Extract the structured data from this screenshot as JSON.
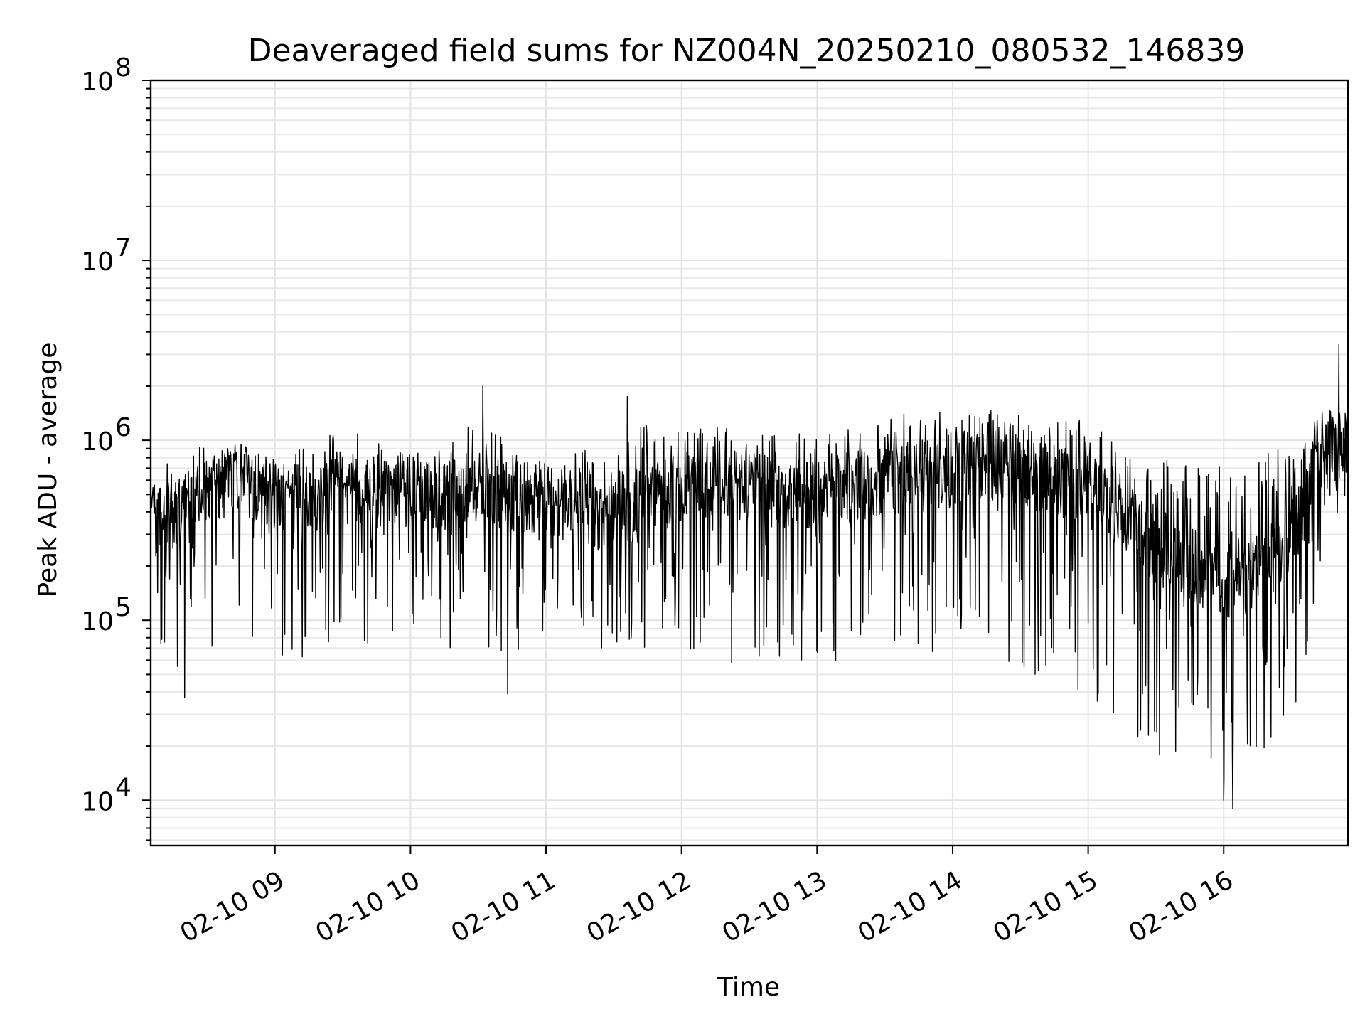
{
  "chart_data": {
    "type": "line",
    "title": "Deaveraged field sums for NZ004N_20250210_080532_146839",
    "xlabel": "Time",
    "ylabel": "Peak ADU - average",
    "y_scale": "log",
    "ylim": [
      5600,
      100000000
    ],
    "xlim": [
      "2025-02-10 08:05",
      "2025-02-10 16:55"
    ],
    "x_ticks": [
      {
        "value": "2025-02-10 09:00",
        "label": "02-10 09"
      },
      {
        "value": "2025-02-10 10:00",
        "label": "02-10 10"
      },
      {
        "value": "2025-02-10 11:00",
        "label": "02-10 11"
      },
      {
        "value": "2025-02-10 12:00",
        "label": "02-10 12"
      },
      {
        "value": "2025-02-10 13:00",
        "label": "02-10 13"
      },
      {
        "value": "2025-02-10 14:00",
        "label": "02-10 14"
      },
      {
        "value": "2025-02-10 15:00",
        "label": "02-10 15"
      },
      {
        "value": "2025-02-10 16:00",
        "label": "02-10 16"
      }
    ],
    "y_ticks": [
      {
        "value": 10000,
        "base": "10",
        "exp": "4"
      },
      {
        "value": 100000,
        "base": "10",
        "exp": "5"
      },
      {
        "value": 1000000,
        "base": "10",
        "exp": "6"
      },
      {
        "value": 10000000,
        "base": "10",
        "exp": "7"
      },
      {
        "value": 100000000,
        "base": "10",
        "exp": "8"
      }
    ],
    "grid": true,
    "line_color": "#000000",
    "envelope": {
      "x": [
        "2025-02-10 08:05",
        "2025-02-10 08:15",
        "2025-02-10 08:30",
        "2025-02-10 08:45",
        "2025-02-10 09:00",
        "2025-02-10 09:15",
        "2025-02-10 09:30",
        "2025-02-10 09:45",
        "2025-02-10 10:00",
        "2025-02-10 10:15",
        "2025-02-10 10:30",
        "2025-02-10 10:45",
        "2025-02-10 11:00",
        "2025-02-10 11:15",
        "2025-02-10 11:30",
        "2025-02-10 11:45",
        "2025-02-10 12:00",
        "2025-02-10 12:15",
        "2025-02-10 12:30",
        "2025-02-10 12:45",
        "2025-02-10 13:00",
        "2025-02-10 13:15",
        "2025-02-10 13:30",
        "2025-02-10 13:45",
        "2025-02-10 14:00",
        "2025-02-10 14:15",
        "2025-02-10 14:30",
        "2025-02-10 14:45",
        "2025-02-10 15:00",
        "2025-02-10 15:15",
        "2025-02-10 15:30",
        "2025-02-10 15:45",
        "2025-02-10 16:00",
        "2025-02-10 16:15",
        "2025-02-10 16:30",
        "2025-02-10 16:45",
        "2025-02-10 16:55"
      ],
      "typical": [
        350000,
        380000,
        550000,
        600000,
        500000,
        450000,
        550000,
        500000,
        500000,
        480000,
        550000,
        480000,
        420000,
        400000,
        380000,
        450000,
        550000,
        600000,
        550000,
        500000,
        500000,
        550000,
        600000,
        600000,
        650000,
        700000,
        650000,
        600000,
        500000,
        400000,
        250000,
        200000,
        150000,
        180000,
        300000,
        800000,
        1000000
      ],
      "low": [
        100000,
        50000,
        60000,
        70000,
        60000,
        60000,
        70000,
        70000,
        70000,
        65000,
        70000,
        60000,
        60000,
        55000,
        60000,
        65000,
        60000,
        55000,
        55000,
        60000,
        60000,
        55000,
        55000,
        50000,
        50000,
        50000,
        45000,
        40000,
        35000,
        25000,
        18000,
        15000,
        12000,
        15000,
        20000,
        300000,
        500000
      ],
      "high": [
        600000,
        800000,
        1000000,
        1000000,
        900000,
        900000,
        1200000,
        1000000,
        900000,
        950000,
        1300000,
        950000,
        800000,
        900000,
        850000,
        1300000,
        1100000,
        1200000,
        1100000,
        1100000,
        1100000,
        1200000,
        1300000,
        1500000,
        1500000,
        1500000,
        1400000,
        1300000,
        1300000,
        900000,
        800000,
        800000,
        800000,
        850000,
        1000000,
        1500000,
        1400000
      ]
    },
    "peaks": [
      {
        "x": "2025-02-10 10:32",
        "y": 2000000
      },
      {
        "x": "2025-02-10 11:36",
        "y": 1750000
      },
      {
        "x": "2025-02-10 16:51",
        "y": 3400000
      }
    ],
    "troughs": [
      {
        "x": "2025-02-10 08:20",
        "y": 37000
      },
      {
        "x": "2025-02-10 10:43",
        "y": 39000
      },
      {
        "x": "2025-02-10 16:00",
        "y": 10000
      },
      {
        "x": "2025-02-10 16:04",
        "y": 9000
      }
    ]
  }
}
